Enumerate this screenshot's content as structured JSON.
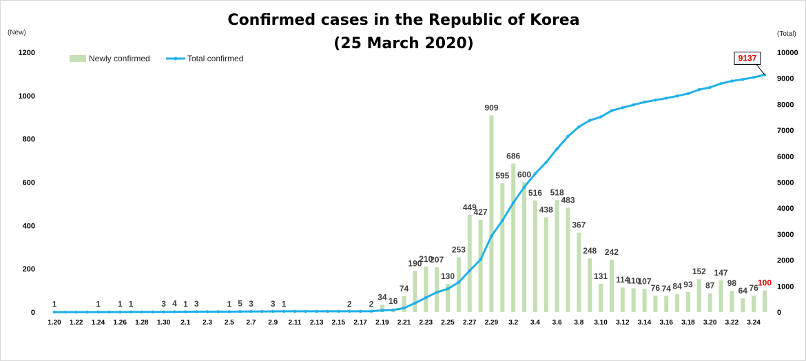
{
  "chart_data": {
    "type": "bar",
    "title": "Confirmed cases in the Republic of Korea",
    "subtitle": "(25 March 2020)",
    "ylabel": "(New)",
    "y2label": "(Total)",
    "ylim": [
      0,
      1200
    ],
    "y2lim": [
      0,
      10000
    ],
    "yticks": [
      "0",
      "200",
      "400",
      "600",
      "800",
      "1000",
      "1200"
    ],
    "y2ticks": [
      "0",
      "1000",
      "2000",
      "3000",
      "4000",
      "5000",
      "6000",
      "7000",
      "8000",
      "9000",
      "10000"
    ],
    "legend": "top-left",
    "grid": false,
    "colors": {
      "bars": "#c5e0b4",
      "line": "#1fb0e8",
      "callout": "#e00000"
    },
    "x_tick_labels": [
      "1.20",
      "1.22",
      "1.24",
      "1.26",
      "1.28",
      "1.30",
      "2.1",
      "2.3",
      "2.5",
      "2.7",
      "2.9",
      "2.11",
      "2.13",
      "2.15",
      "2.17",
      "2.19",
      "2.21",
      "2.23",
      "2.25",
      "2.27",
      "2.29",
      "3.2",
      "3.4",
      "3.6",
      "3.8",
      "3.10",
      "3.12",
      "3.14",
      "3.16",
      "3.18",
      "3.20",
      "3.22",
      "3.24"
    ],
    "dates": [
      "1.20",
      "1.21",
      "1.22",
      "1.23",
      "1.24",
      "1.25",
      "1.26",
      "1.27",
      "1.28",
      "1.29",
      "1.30",
      "1.31",
      "2.1",
      "2.2",
      "2.3",
      "2.4",
      "2.5",
      "2.6",
      "2.7",
      "2.8",
      "2.9",
      "2.10",
      "2.11",
      "2.12",
      "2.13",
      "2.14",
      "2.15",
      "2.16",
      "2.17",
      "2.18",
      "2.19",
      "2.20",
      "2.21",
      "2.22",
      "2.23",
      "2.24",
      "2.25",
      "2.26",
      "2.27",
      "2.28",
      "2.29",
      "3.1",
      "3.2",
      "3.3",
      "3.4",
      "3.5",
      "3.6",
      "3.7",
      "3.8",
      "3.9",
      "3.10",
      "3.11",
      "3.12",
      "3.13",
      "3.14",
      "3.15",
      "3.16",
      "3.17",
      "3.18",
      "3.19",
      "3.20",
      "3.21",
      "3.22",
      "3.23",
      "3.24",
      "3.25"
    ],
    "series": [
      {
        "name": "Newly confirmed",
        "axis": "left",
        "kind": "bar",
        "values": [
          1,
          0,
          0,
          0,
          1,
          0,
          1,
          1,
          0,
          0,
          3,
          4,
          1,
          3,
          0,
          0,
          1,
          5,
          3,
          0,
          3,
          1,
          0,
          0,
          0,
          0,
          0,
          2,
          0,
          2,
          34,
          16,
          74,
          190,
          210,
          207,
          130,
          253,
          449,
          427,
          909,
          595,
          686,
          600,
          516,
          438,
          518,
          483,
          367,
          248,
          131,
          242,
          114,
          110,
          107,
          76,
          74,
          84,
          93,
          152,
          87,
          147,
          98,
          64,
          76,
          100
        ],
        "labels": [
          "1",
          "",
          "",
          "",
          "1",
          "",
          "1",
          "1",
          "",
          "",
          "3",
          "4",
          "1",
          "3",
          "",
          "",
          "1",
          "5",
          "3",
          "",
          "3",
          "1",
          "",
          "",
          "",
          "",
          "",
          "2",
          "",
          "2",
          "34",
          "16",
          "74",
          "190",
          "210",
          "207",
          "130",
          "253",
          "449",
          "427",
          "909",
          "595",
          "686",
          "600",
          "516",
          "438",
          "518",
          "483",
          "367",
          "248",
          "131",
          "242",
          "114",
          "110",
          "107",
          "76",
          "74",
          "84",
          "93",
          "152",
          "87",
          "147",
          "98",
          "64",
          "76",
          "100"
        ]
      },
      {
        "name": "Total confirmed",
        "axis": "right",
        "kind": "line",
        "values": [
          1,
          1,
          1,
          1,
          2,
          2,
          3,
          4,
          4,
          4,
          7,
          11,
          12,
          15,
          15,
          15,
          16,
          21,
          24,
          24,
          27,
          28,
          28,
          28,
          28,
          28,
          28,
          30,
          30,
          32,
          66,
          82,
          156,
          346,
          556,
          763,
          893,
          1146,
          1595,
          2022,
          2931,
          3526,
          4212,
          4812,
          5328,
          5766,
          6284,
          6767,
          7134,
          7382,
          7513,
          7755,
          7869,
          7979,
          8086,
          8162,
          8236,
          8320,
          8413,
          8565,
          8652,
          8799,
          8897,
          8961,
          9037,
          9137
        ]
      }
    ],
    "annotation": {
      "text": "9137"
    }
  }
}
